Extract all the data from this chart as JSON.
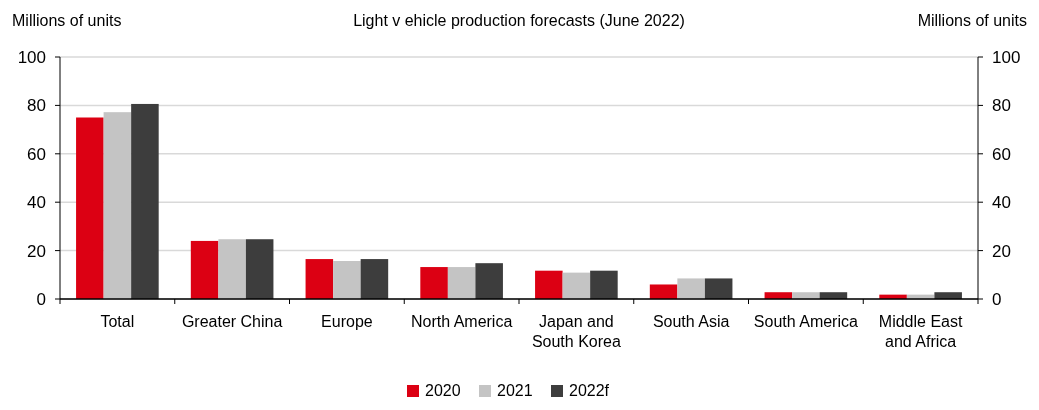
{
  "chart_data": {
    "type": "bar",
    "title": "Light v ehicle production forecasts (June 2022)",
    "ylabel": "Millions of units",
    "y2label": "Millions of units",
    "categories": [
      "Total",
      "Greater China",
      "Europe",
      "North America",
      "Japan and South Korea",
      "South Asia",
      "South America",
      "Middle East and Africa"
    ],
    "series": [
      {
        "name": "2020",
        "color": "#dc0013",
        "values": [
          75,
          24,
          16.5,
          13.2,
          11.7,
          6,
          2.8,
          1.8
        ]
      },
      {
        "name": "2021",
        "color": "#c4c4c4",
        "values": [
          77.2,
          24.7,
          15.7,
          13.2,
          10.9,
          8.5,
          2.8,
          1.8
        ]
      },
      {
        "name": "2022f",
        "color": "#3d3d3d",
        "values": [
          80.6,
          24.7,
          16.5,
          14.8,
          11.7,
          8.5,
          2.8,
          2.8
        ]
      }
    ],
    "ylim": [
      0,
      100
    ],
    "yticks": [
      0,
      20,
      40,
      60,
      80,
      100
    ],
    "y2lim": [
      0,
      100
    ],
    "y2ticks": [
      0,
      20,
      40,
      60,
      80,
      100
    ],
    "grid": "y",
    "legend": "bottom"
  }
}
